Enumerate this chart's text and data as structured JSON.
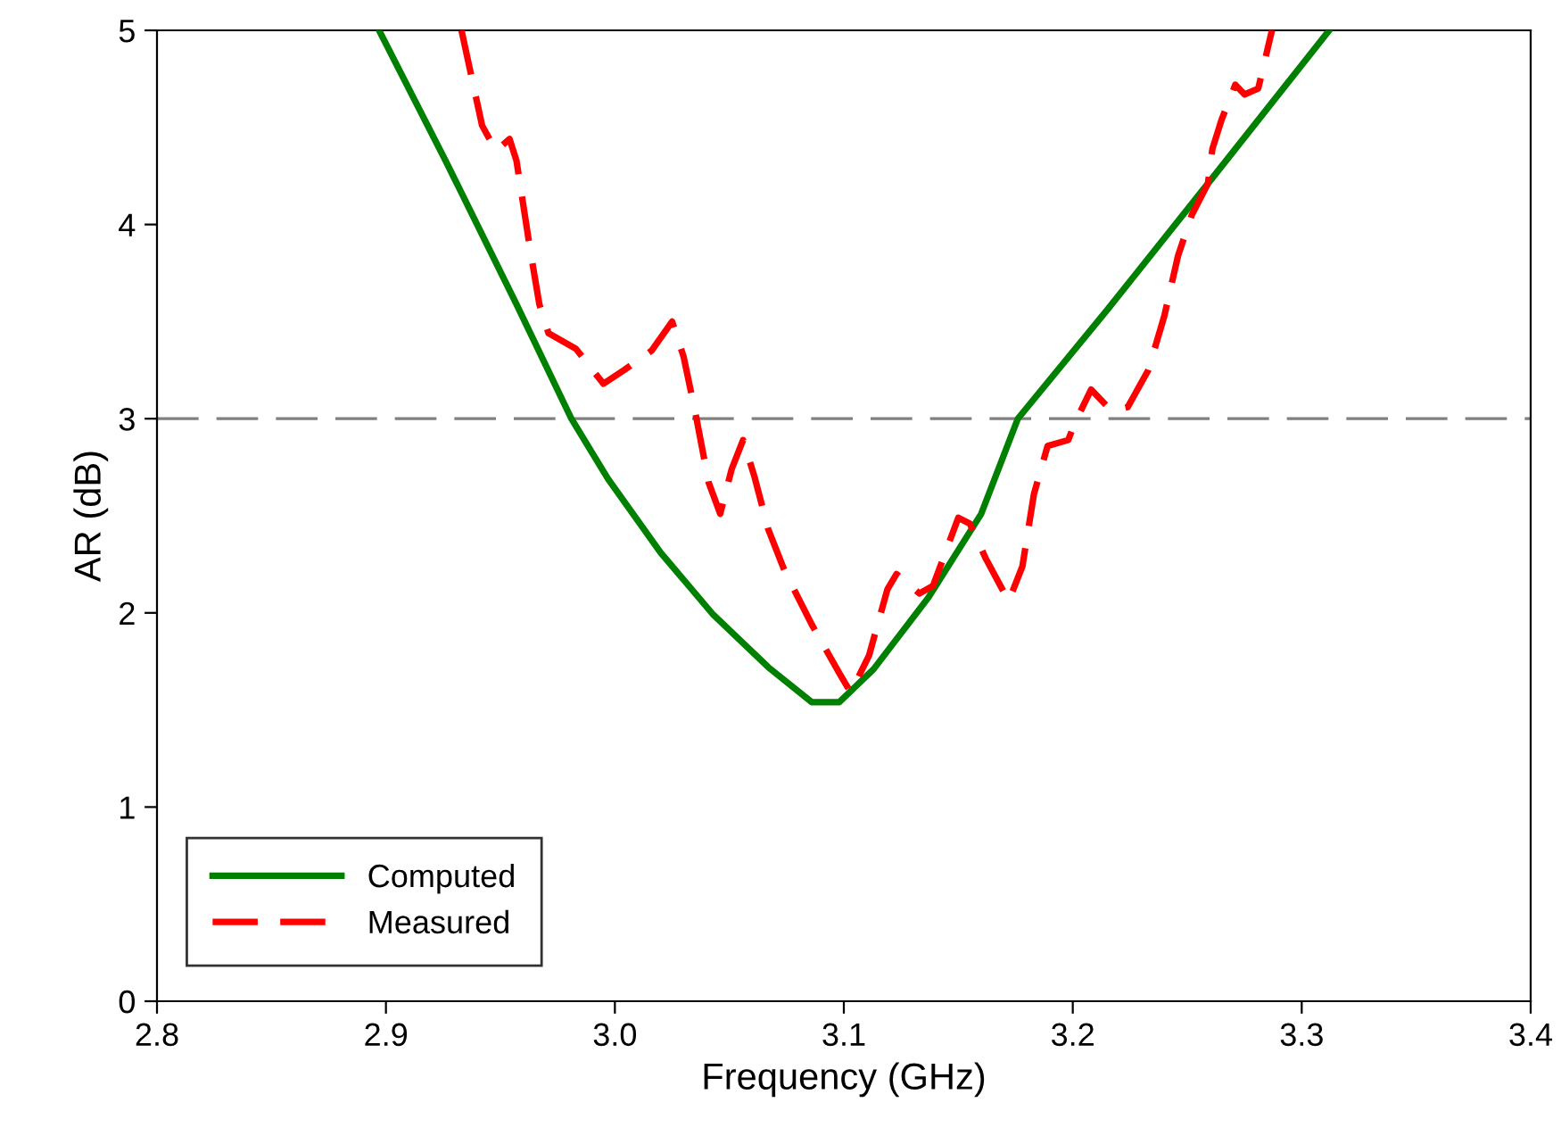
{
  "chart_data": {
    "type": "line",
    "xlabel": "Frequency (GHz)",
    "ylabel": "AR (dB)",
    "xlim": [
      2.8,
      3.4
    ],
    "xticks": [
      {
        "value": 2.8,
        "label": "2.8"
      },
      {
        "value": 2.9,
        "label": "2.9"
      },
      {
        "value": 3.0,
        "label": "3.0"
      },
      {
        "value": 3.1,
        "label": "3.1"
      },
      {
        "value": 3.2,
        "label": "3.2"
      },
      {
        "value": 3.3,
        "label": "3.3"
      },
      {
        "value": 3.4,
        "label": "3.4"
      }
    ],
    "ylim": [
      0,
      5
    ],
    "yticks": [
      0,
      1,
      2,
      3,
      4,
      5
    ],
    "grid": false,
    "legend": "bottom left",
    "ref_lines": [
      {
        "axis": "y",
        "value": 3,
        "color": "#808080",
        "line_style": "dashed"
      }
    ],
    "series": [
      {
        "name": "Computed",
        "color": "#008000",
        "line_style": "solid",
        "x": [
          2.897,
          2.926,
          2.957,
          2.981,
          2.997,
          3.02,
          3.043,
          3.067,
          3.086,
          3.098,
          3.113,
          3.137,
          3.16,
          3.176,
          3.215,
          3.261,
          3.312
        ],
        "values": [
          5.0,
          4.33,
          3.59,
          3.0,
          2.69,
          2.31,
          1.99,
          1.72,
          1.54,
          1.54,
          1.71,
          2.08,
          2.51,
          3.0,
          3.56,
          4.24,
          5.0
        ]
      },
      {
        "name": "Measured",
        "color": "#ff0000",
        "line_style": "dashed",
        "x": [
          2.933,
          2.942,
          2.948,
          2.954,
          2.957,
          2.963,
          2.967,
          2.971,
          2.983,
          2.995,
          3.004,
          3.016,
          3.025,
          3.03,
          3.035,
          3.041,
          3.046,
          3.051,
          3.056,
          3.061,
          3.067,
          3.074,
          3.086,
          3.098,
          3.103,
          3.111,
          3.119,
          3.123,
          3.133,
          3.139,
          3.15,
          3.155,
          3.162,
          3.172,
          3.178,
          3.183,
          3.189,
          3.198,
          3.201,
          3.208,
          3.217,
          3.224,
          3.233,
          3.24,
          3.246,
          3.252,
          3.259,
          3.261,
          3.265,
          3.271,
          3.275,
          3.281,
          3.287
        ],
        "values": [
          5.0,
          4.51,
          4.38,
          4.44,
          4.33,
          3.87,
          3.59,
          3.44,
          3.36,
          3.18,
          3.25,
          3.35,
          3.5,
          3.32,
          3.04,
          2.67,
          2.51,
          2.74,
          2.89,
          2.7,
          2.43,
          2.22,
          1.94,
          1.69,
          1.59,
          1.78,
          2.12,
          2.2,
          2.1,
          2.14,
          2.49,
          2.46,
          2.28,
          2.06,
          2.24,
          2.61,
          2.86,
          2.89,
          2.98,
          3.15,
          3.04,
          3.06,
          3.25,
          3.53,
          3.84,
          4.05,
          4.21,
          4.39,
          4.54,
          4.72,
          4.67,
          4.7,
          5.0
        ]
      }
    ]
  }
}
